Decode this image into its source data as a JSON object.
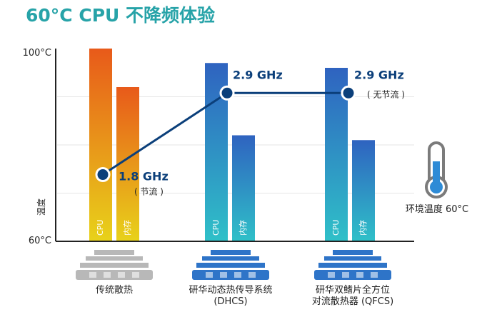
{
  "title": "60°C CPU 不降频体验",
  "colors": {
    "title": "#27a3a8",
    "axis": "#222222",
    "grid": "#e6e6e6",
    "traditional_top": "#e85a1a",
    "traditional_bottom": "#e8d21a",
    "dhcs_top": "#2f63c0",
    "dhcs_bottom": "#2fc0c8",
    "line": "#0b3f7a",
    "heatsink_gray": "#b8b8b8",
    "heatsink_blue": "#2e74c8",
    "thermo_glass": "#7b7b7b",
    "thermo_fill": "#2e8bd6"
  },
  "chart_data": {
    "type": "bar",
    "ylabel": "温度",
    "ylim": [
      60,
      100
    ],
    "ytick_labels": [
      "100°C",
      "60°C"
    ],
    "categories": [
      "传统散热",
      "研华动态热传导系统 (DHCS)",
      "研华双鳍片全方位对流散热器 (QFCS)"
    ],
    "category_labels": [
      [
        "传统散热"
      ],
      [
        "研华动态热传导系统",
        "(DHCS)"
      ],
      [
        "研华双鳍片全方位",
        "对流散热器 (QFCS)"
      ]
    ],
    "series": [
      {
        "name": "CPU",
        "values": [
          100,
          97,
          96
        ]
      },
      {
        "name": "内存",
        "values": [
          92,
          82,
          81
        ]
      }
    ],
    "frequency_line": {
      "values": [
        1.8,
        2.9,
        2.9
      ],
      "labels": [
        "1.8 GHz",
        "2.9 GHz",
        "2.9 GHz"
      ],
      "notes": [
        "( 节流 )",
        "",
        "( 无节流 )"
      ]
    },
    "ambient_label": "环境温度 60°C",
    "grid": true
  }
}
